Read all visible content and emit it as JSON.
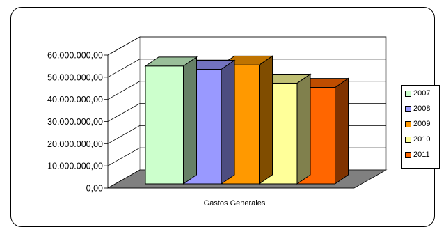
{
  "chart_data": {
    "type": "bar",
    "title": "",
    "xlabel": "",
    "ylabel": "",
    "categories": [
      "Gastos Generales"
    ],
    "ylim": [
      0,
      60000000
    ],
    "yticks": [
      0,
      10000000,
      20000000,
      30000000,
      40000000,
      50000000,
      60000000
    ],
    "ytick_labels": [
      "0,00",
      "10.000.000,00",
      "20.000.000,00",
      "30.000.000,00",
      "40.000.000,00",
      "50.000.000,00",
      "60.000.000,00"
    ],
    "grid": true,
    "legend_position": "right",
    "series": [
      {
        "name": "2007",
        "values": [
          55000000
        ],
        "color": "#ccffcc"
      },
      {
        "name": "2008",
        "values": [
          53500000
        ],
        "color": "#9999ff"
      },
      {
        "name": "2009",
        "values": [
          55500000
        ],
        "color": "#ff9900"
      },
      {
        "name": "2010",
        "values": [
          47000000
        ],
        "color": "#ffff99"
      },
      {
        "name": "2011",
        "values": [
          45000000
        ],
        "color": "#ff6600"
      }
    ]
  }
}
